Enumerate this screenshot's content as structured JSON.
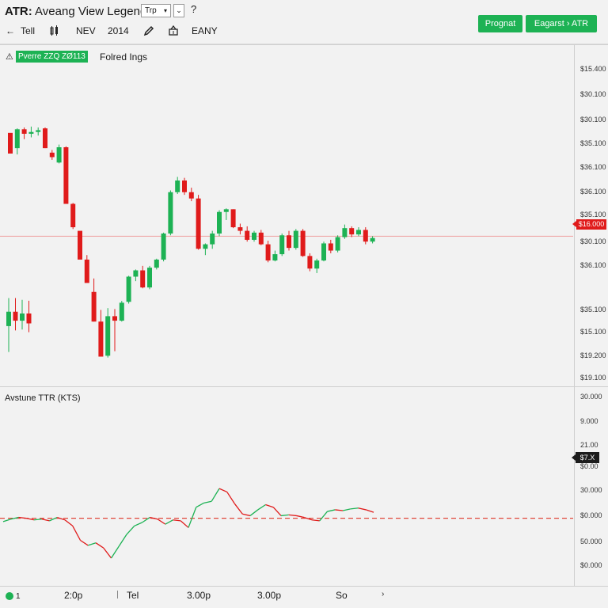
{
  "header": {
    "title_bold": "ATR:",
    "title_rest": " Aveang View Legend",
    "interval": "Trp",
    "interval_caret": "▾",
    "chevron": "⌄",
    "help": "?",
    "predict_label": "Prognat",
    "export_label": "Eagarst  ›  ATR"
  },
  "toolbar": {
    "back": "←",
    "item1": "Tell",
    "item2": "NEV",
    "item3": "2014",
    "item4": "EANY"
  },
  "main": {
    "legend_icon": "⚠",
    "badge": "Pverre ZZQ ZØ113",
    "legend_label": "Folred Ings",
    "price_labels": [
      "$15.400",
      "$30.100",
      "$30.100",
      "$35.100",
      "$36.100",
      "$36.100",
      "$30.100",
      "$36.100",
      "$35.100",
      "$15.100",
      "$19.200",
      "$19.100"
    ],
    "current_price": "$35.100",
    "current_price_tag": "$16.000"
  },
  "indicator": {
    "title": "Avstune TTR (KTS)",
    "labels": [
      "30.000",
      "9.000",
      "21.00",
      "$0.00",
      "30.000",
      "$0.000",
      "50.000",
      "$0.000"
    ],
    "tag": "$7.X"
  },
  "timeline": {
    "labels": [
      "1",
      "2:0p",
      "Tel",
      "3.00p",
      "3.00p",
      "So",
      "›"
    ]
  },
  "colors": {
    "up": "#1db254",
    "down": "#e01b1b",
    "line": "#e0473a",
    "background": "#f2f2f2"
  },
  "chart_data": [
    {
      "type": "candlestick",
      "candles_ohlc": [
        [
          35.5,
          35.4,
          33.3,
          33.2
        ],
        [
          33.8,
          36.0,
          33.1,
          35.9
        ],
        [
          35.9,
          36.1,
          34.8,
          35.4
        ],
        [
          35.4,
          36.2,
          35.0,
          35.6
        ],
        [
          35.6,
          36.1,
          35.2,
          35.8
        ],
        [
          36.0,
          36.1,
          33.8,
          33.8
        ],
        [
          33.3,
          33.6,
          32.5,
          32.8
        ],
        [
          32.2,
          34.2,
          32.1,
          33.9
        ],
        [
          33.9,
          34.0,
          27.8,
          27.6
        ],
        [
          27.6,
          27.7,
          24.8,
          25.0
        ],
        [
          24.6,
          24.5,
          21.7,
          21.4
        ],
        [
          21.4,
          21.9,
          19.8,
          18.8
        ],
        [
          17.8,
          19.3,
          14.5,
          14.5
        ],
        [
          14.5,
          15.8,
          13.6,
          10.6
        ],
        [
          10.7,
          16.0,
          10.5,
          15.1
        ],
        [
          15.1,
          15.9,
          11.2,
          14.6
        ],
        [
          14.6,
          16.8,
          14.5,
          16.6
        ],
        [
          16.7,
          19.6,
          16.5,
          19.5
        ],
        [
          19.5,
          20.3,
          19.0,
          20.2
        ],
        [
          20.2,
          20.7,
          18.2,
          18.3
        ],
        [
          18.3,
          20.7,
          18.1,
          20.5
        ],
        [
          20.5,
          21.5,
          20.3,
          21.4
        ],
        [
          21.4,
          24.4,
          21.2,
          24.3
        ],
        [
          24.3,
          29.1,
          24.1,
          28.9
        ],
        [
          28.9,
          30.6,
          28.7,
          30.2
        ],
        [
          30.2,
          30.5,
          28.6,
          28.9
        ],
        [
          28.9,
          29.4,
          27.9,
          28.2
        ],
        [
          28.2,
          28.6,
          22.5,
          22.6
        ],
        [
          22.6,
          23.2,
          21.9,
          23.1
        ],
        [
          23.1,
          24.6,
          22.6,
          24.3
        ],
        [
          24.3,
          26.9,
          24.0,
          26.7
        ],
        [
          26.7,
          27.1,
          25.8,
          27.0
        ],
        [
          27.0,
          27.0,
          24.9,
          25.0
        ],
        [
          25.0,
          25.4,
          24.2,
          24.6
        ],
        [
          24.6,
          25.1,
          23.4,
          23.6
        ],
        [
          23.6,
          24.6,
          23.4,
          24.4
        ],
        [
          24.4,
          24.7,
          23.0,
          23.1
        ],
        [
          23.1,
          23.5,
          21.1,
          21.3
        ],
        [
          21.3,
          22.4,
          21.2,
          22.0
        ],
        [
          22.0,
          24.3,
          21.8,
          24.1
        ],
        [
          24.1,
          24.6,
          22.4,
          22.7
        ],
        [
          22.7,
          24.8,
          22.5,
          24.6
        ],
        [
          24.6,
          24.8,
          21.7,
          21.8
        ],
        [
          21.8,
          22.1,
          20.1,
          20.4
        ],
        [
          20.4,
          21.5,
          19.9,
          21.3
        ],
        [
          21.3,
          23.4,
          21.2,
          23.2
        ],
        [
          23.2,
          23.6,
          22.1,
          22.4
        ],
        [
          22.4,
          24.1,
          22.2,
          23.9
        ],
        [
          23.9,
          25.3,
          23.7,
          24.9
        ],
        [
          24.9,
          25.1,
          23.9,
          24.2
        ],
        [
          24.2,
          25.0,
          24.0,
          24.7
        ],
        [
          24.7,
          25.0,
          23.1,
          23.4
        ],
        [
          23.4,
          24.0,
          23.2,
          23.8
        ]
      ],
      "first_panel_ohlc": [
        [
          16.0,
          17.8,
          14.0,
          17.6
        ],
        [
          17.6,
          17.8,
          16.4,
          16.6
        ],
        [
          16.6,
          17.6,
          16.5,
          17.4
        ],
        [
          17.4,
          17.5,
          16.2,
          16.3
        ]
      ],
      "current_price_level": 24.0,
      "ylim": [
        8,
        45
      ]
    },
    {
      "type": "line",
      "title": "Avstune TTR (KTS)",
      "values": [
        7.1,
        7.4,
        7.6,
        7.5,
        7.3,
        7.4,
        7.2,
        7.6,
        7.3,
        6.6,
        4.9,
        4.3,
        4.6,
        4.0,
        2.8,
        4.2,
        5.6,
        6.6,
        7.0,
        7.6,
        7.4,
        6.8,
        7.3,
        7.2,
        6.4,
        8.8,
        9.3,
        9.5,
        11.0,
        10.6,
        9.2,
        8.0,
        7.8,
        8.5,
        9.1,
        8.8,
        7.8,
        7.9,
        7.8,
        7.6,
        7.3,
        7.2,
        8.3,
        8.5,
        8.4,
        8.6,
        8.7,
        8.5,
        8.2
      ],
      "dashed_level": 7.5,
      "ylim": [
        0,
        21
      ]
    }
  ]
}
